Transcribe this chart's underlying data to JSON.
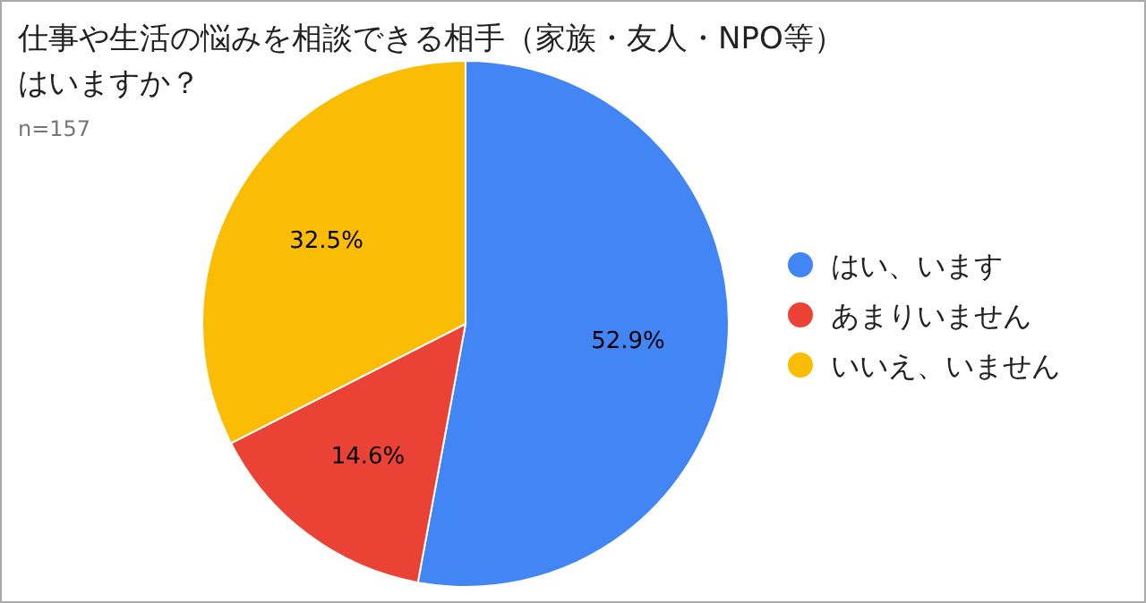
{
  "chart_data": {
    "type": "pie",
    "title": "仕事や生活の悩みを相談できる相手（家族・友人・NPO等）はいますか？",
    "subtitle": "n=157",
    "categories": [
      "はい、います",
      "あまりいません",
      "いいえ、いません"
    ],
    "values": [
      52.9,
      14.6,
      32.5
    ],
    "value_labels": [
      "52.9%",
      "14.6%",
      "32.5%"
    ],
    "colors": [
      "#4285f4",
      "#ea4335",
      "#fbbc04"
    ],
    "legend": "right"
  }
}
